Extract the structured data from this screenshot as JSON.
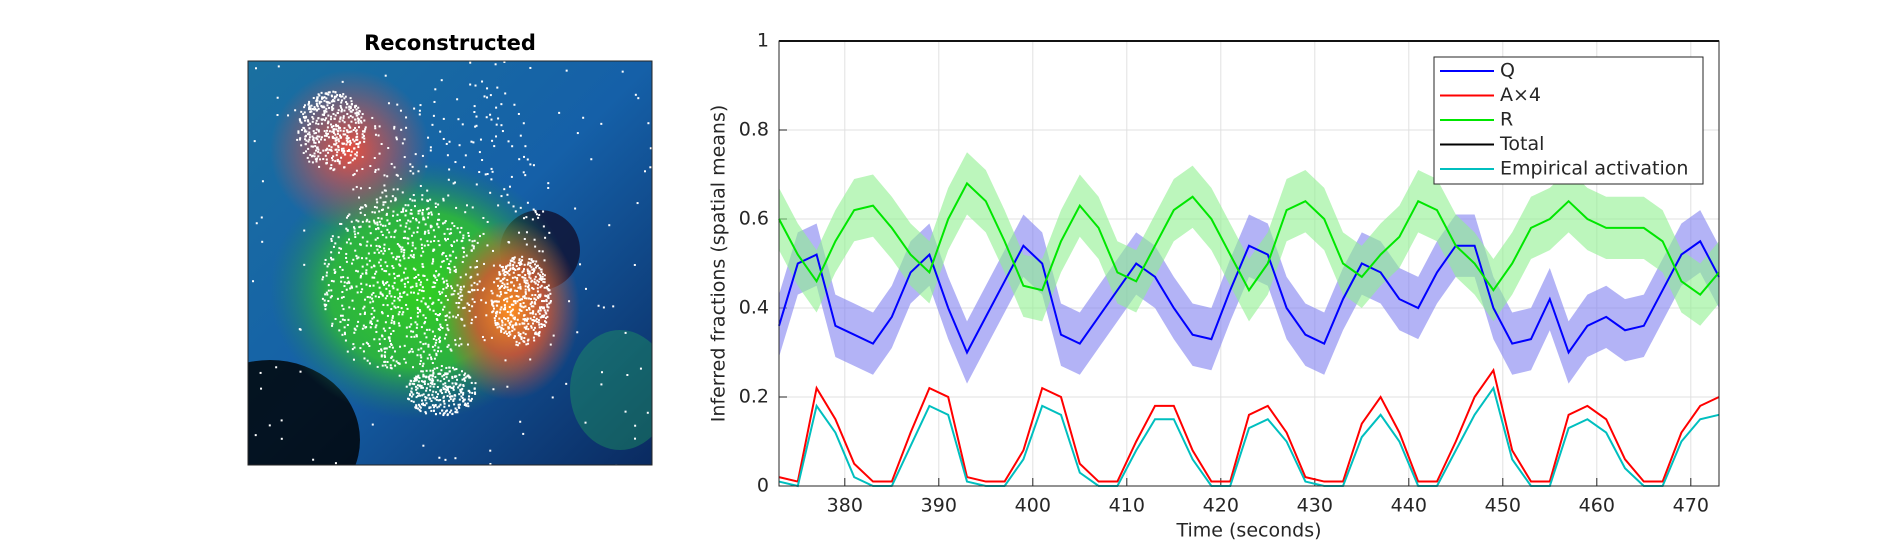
{
  "image_panel": {
    "title": "Reconstructed"
  },
  "chart_data": {
    "type": "line",
    "xlabel": "Time (seconds)",
    "ylabel": "Inferred fractions (spatial means)",
    "x": [
      373,
      375,
      377,
      379,
      381,
      383,
      385,
      387,
      389,
      391,
      393,
      395,
      397,
      399,
      401,
      403,
      405,
      407,
      409,
      411,
      413,
      415,
      417,
      419,
      421,
      423,
      425,
      427,
      429,
      431,
      433,
      435,
      437,
      439,
      441,
      443,
      445,
      447,
      449,
      451,
      453,
      455,
      457,
      459,
      461,
      463,
      465,
      467,
      469,
      471,
      473
    ],
    "series": [
      {
        "name": "Q",
        "color": "#0000ff",
        "band": 0.07,
        "band_color": "#8080f0",
        "values": [
          0.36,
          0.5,
          0.52,
          0.36,
          0.34,
          0.32,
          0.38,
          0.48,
          0.52,
          0.4,
          0.3,
          0.38,
          0.46,
          0.54,
          0.5,
          0.34,
          0.32,
          0.38,
          0.44,
          0.5,
          0.47,
          0.4,
          0.34,
          0.33,
          0.44,
          0.54,
          0.52,
          0.4,
          0.34,
          0.32,
          0.42,
          0.5,
          0.48,
          0.42,
          0.4,
          0.48,
          0.54,
          0.54,
          0.4,
          0.32,
          0.33,
          0.42,
          0.3,
          0.36,
          0.38,
          0.35,
          0.36,
          0.44,
          0.52,
          0.55,
          0.47
        ]
      },
      {
        "name": "A×4",
        "color": "#ff0000",
        "values": [
          0.02,
          0.01,
          0.22,
          0.15,
          0.05,
          0.01,
          0.01,
          0.12,
          0.22,
          0.2,
          0.02,
          0.01,
          0.01,
          0.08,
          0.22,
          0.2,
          0.05,
          0.01,
          0.01,
          0.1,
          0.18,
          0.18,
          0.08,
          0.01,
          0.01,
          0.16,
          0.18,
          0.12,
          0.02,
          0.01,
          0.01,
          0.14,
          0.2,
          0.12,
          0.01,
          0.01,
          0.1,
          0.2,
          0.26,
          0.08,
          0.01,
          0.01,
          0.16,
          0.18,
          0.15,
          0.06,
          0.01,
          0.01,
          0.12,
          0.18,
          0.2
        ]
      },
      {
        "name": "R",
        "color": "#00e600",
        "band": 0.07,
        "band_color": "#90f090",
        "values": [
          0.6,
          0.52,
          0.46,
          0.55,
          0.62,
          0.63,
          0.58,
          0.52,
          0.48,
          0.6,
          0.68,
          0.64,
          0.55,
          0.45,
          0.44,
          0.55,
          0.63,
          0.58,
          0.48,
          0.46,
          0.54,
          0.62,
          0.65,
          0.6,
          0.52,
          0.44,
          0.5,
          0.62,
          0.64,
          0.6,
          0.5,
          0.47,
          0.52,
          0.56,
          0.64,
          0.62,
          0.54,
          0.5,
          0.44,
          0.5,
          0.58,
          0.6,
          0.64,
          0.6,
          0.58,
          0.58,
          0.58,
          0.55,
          0.46,
          0.43,
          0.48
        ]
      },
      {
        "name": "Total",
        "color": "#000000",
        "values": [
          1,
          1,
          1,
          1,
          1,
          1,
          1,
          1,
          1,
          1,
          1,
          1,
          1,
          1,
          1,
          1,
          1,
          1,
          1,
          1,
          1,
          1,
          1,
          1,
          1,
          1,
          1,
          1,
          1,
          1,
          1,
          1,
          1,
          1,
          1,
          1,
          1,
          1,
          1,
          1,
          1,
          1,
          1,
          1,
          1,
          1,
          1,
          1,
          1,
          1,
          1
        ]
      },
      {
        "name": "Empirical activation",
        "color": "#00bfbf",
        "values": [
          0.01,
          0,
          0.18,
          0.12,
          0.02,
          0,
          0,
          0.09,
          0.18,
          0.16,
          0.01,
          0,
          0,
          0.06,
          0.18,
          0.16,
          0.03,
          0,
          0,
          0.08,
          0.15,
          0.15,
          0.06,
          0,
          0,
          0.13,
          0.15,
          0.1,
          0.01,
          0,
          0,
          0.11,
          0.16,
          0.1,
          0,
          0,
          0.08,
          0.16,
          0.22,
          0.06,
          0,
          0,
          0.13,
          0.15,
          0.12,
          0.04,
          0,
          0,
          0.1,
          0.15,
          0.16
        ]
      }
    ],
    "xlim": [
      373,
      473
    ],
    "ylim": [
      0,
      1
    ],
    "xticks": [
      380,
      390,
      400,
      410,
      420,
      430,
      440,
      450,
      460,
      470
    ],
    "yticks": [
      0,
      0.2,
      0.4,
      0.6,
      0.8,
      1
    ],
    "grid": true,
    "legend": "upper right"
  }
}
